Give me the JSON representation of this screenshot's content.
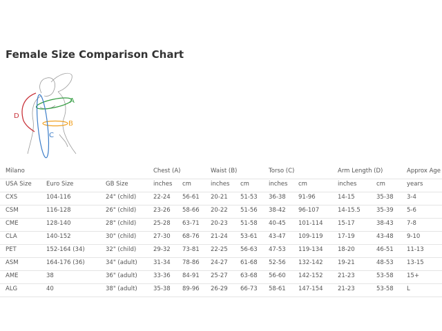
{
  "title": "Female Size Comparison Chart",
  "figure": {
    "labels": [
      "A",
      "B",
      "C",
      "D"
    ]
  },
  "table": {
    "group_header": [
      "Milano",
      "",
      "",
      "Chest (A)",
      "",
      "Waist (B)",
      "",
      "Torso (C)",
      "",
      "Arm Length (D)",
      "",
      "Approx Age"
    ],
    "header": [
      "USA Size",
      "Euro Size",
      "GB Size",
      "inches",
      "cm",
      "inches",
      "cm",
      "inches",
      "cm",
      "inches",
      "cm",
      "years"
    ],
    "rows": [
      [
        "CXS",
        "104-116",
        "24\" (child)",
        "22-24",
        "56-61",
        "20-21",
        "51-53",
        "36-38",
        "91-96",
        "14-15",
        "35-38",
        "3-4"
      ],
      [
        "CSM",
        "116-128",
        "26\" (child)",
        "23-26",
        "58-66",
        "20-22",
        "51-56",
        "38-42",
        "96-107",
        "14-15.5",
        "35-39",
        "5-6"
      ],
      [
        "CME",
        "128-140",
        "28\" (child)",
        "25-28",
        "63-71",
        "20-23",
        "51-58",
        "40-45",
        "101-114",
        "15-17",
        "38-43",
        "7-8"
      ],
      [
        "CLA",
        "140-152",
        "30\" (child)",
        "27-30",
        "68-76",
        "21-24",
        "53-61",
        "43-47",
        "109-119",
        "17-19",
        "43-48",
        "9-10"
      ],
      [
        "PET",
        "152-164 (34)",
        "32\" (child)",
        "29-32",
        "73-81",
        "22-25",
        "56-63",
        "47-53",
        "119-134",
        "18-20",
        "46-51",
        "11-13"
      ],
      [
        "ASM",
        "164-176 (36)",
        "34\" (adult)",
        "31-34",
        "78-86",
        "24-27",
        "61-68",
        "52-56",
        "132-142",
        "19-21",
        "48-53",
        "13-15"
      ],
      [
        "AME",
        "38",
        "36\" (adult)",
        "33-36",
        "84-91",
        "25-27",
        "63-68",
        "56-60",
        "142-152",
        "21-23",
        "53-58",
        "15+"
      ],
      [
        "ALG",
        "40",
        "38\" (adult)",
        "35-38",
        "89-96",
        "26-29",
        "66-73",
        "58-61",
        "147-154",
        "21-23",
        "53-58",
        "L"
      ]
    ]
  }
}
